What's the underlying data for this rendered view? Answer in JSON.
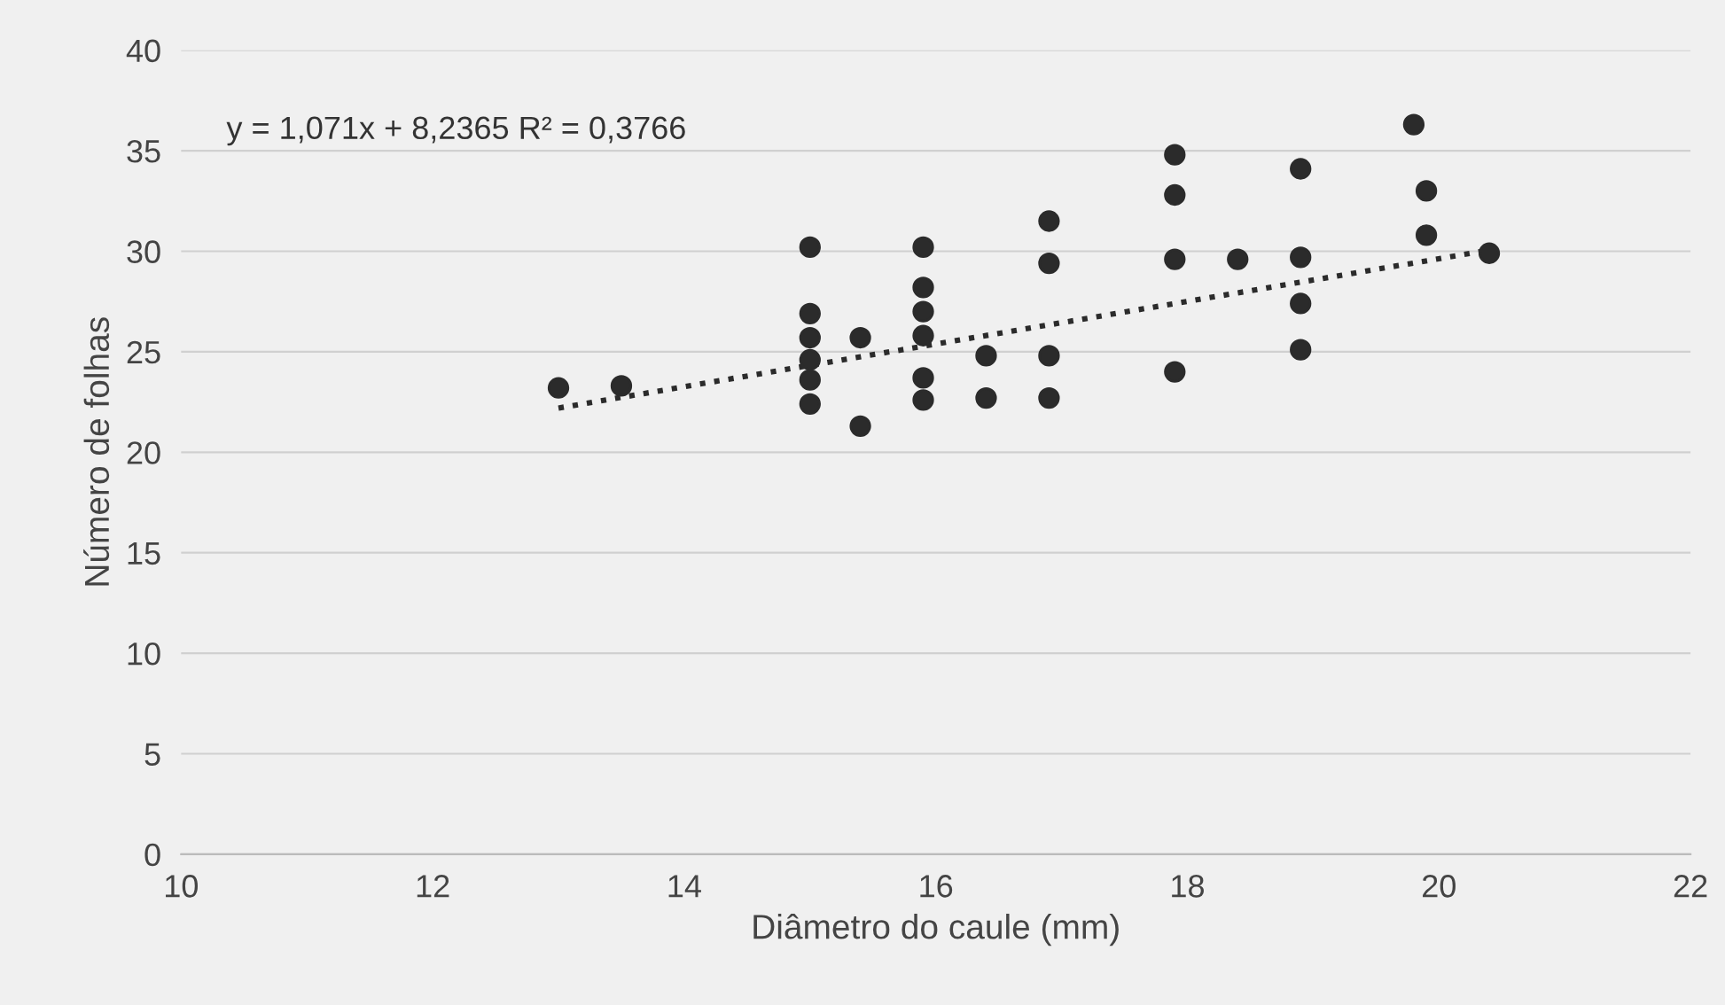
{
  "chart_data": {
    "type": "scatter",
    "xlabel": "Diâmetro do caule (mm)",
    "ylabel": "Número de folhas",
    "annotations": [
      "y = 1,071x + 8,2365 R² = 0,3766"
    ],
    "series": [
      {
        "color": "#2b2b2b",
        "marker": "circle",
        "x": [
          13,
          13.5,
          15,
          15,
          15,
          15,
          15,
          15,
          15.4,
          15.4,
          15.9,
          15.9,
          15.9,
          15.9,
          15.9,
          15.9,
          16.4,
          16.4,
          16.9,
          16.9,
          16.9,
          16.9,
          17.9,
          17.9,
          17.9,
          17.9,
          18.4,
          18.9,
          18.9,
          18.9,
          18.9,
          19.8,
          19.9,
          19.9,
          20.4
        ],
        "values": [
          23.2,
          23.3,
          30.2,
          26.9,
          25.7,
          24.6,
          23.6,
          22.4,
          25.7,
          21.3,
          30.2,
          28.2,
          27,
          25.8,
          23.7,
          22.6,
          24.8,
          22.7,
          31.5,
          29.4,
          24.8,
          22.7,
          34.8,
          32.8,
          29.6,
          24,
          29.6,
          34.1,
          29.7,
          27.4,
          25.1,
          36.3,
          33,
          30.8,
          29.9
        ]
      },
      {
        "type": "line",
        "color": "#2b2b2b",
        "line_style": "dotted",
        "marker": "none",
        "x": [
          13,
          20.35
        ],
        "values": [
          22.2,
          30.0
        ]
      }
    ],
    "xlim": [
      10,
      22
    ],
    "xticks": [
      10,
      12,
      14,
      16,
      18,
      20,
      22
    ],
    "ylim": [
      0,
      40
    ],
    "yticks": [
      0,
      5,
      10,
      15,
      20,
      25,
      30,
      35,
      40
    ],
    "grid": "y",
    "legend": false
  }
}
